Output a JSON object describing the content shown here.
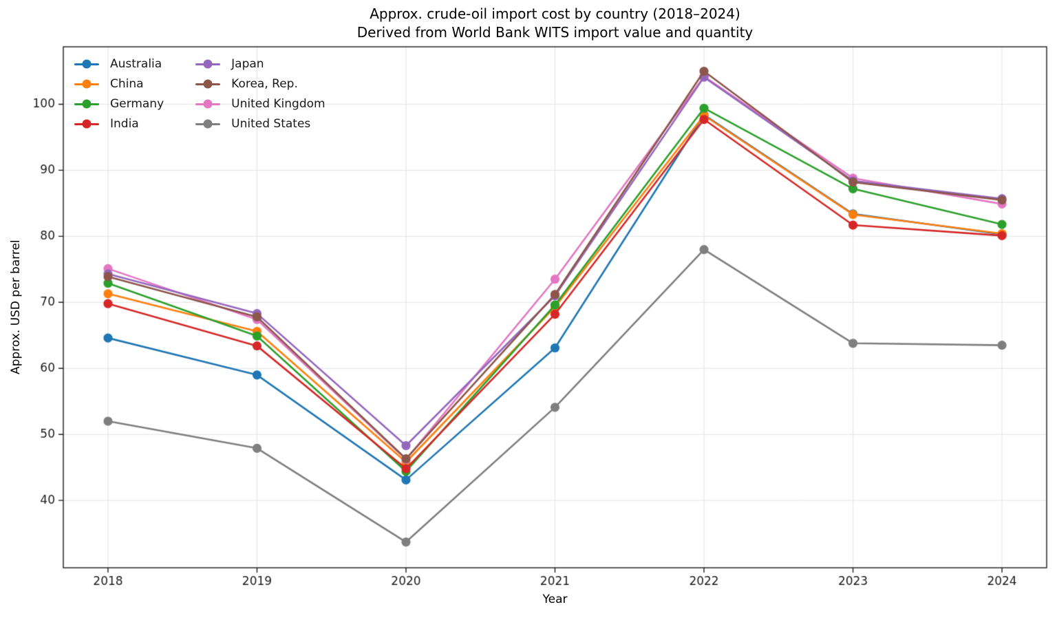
{
  "title": {
    "line1": "Approx. crude-oil import cost by country (2018–2024)",
    "line2": "Derived from World Bank WITS import value and quantity"
  },
  "chart_data": {
    "type": "line",
    "title": "Approx. crude-oil import cost by country (2018–2024)",
    "subtitle": "Derived from World Bank WITS import value and quantity",
    "xlabel": "Year",
    "ylabel": "Approx. USD per barrel",
    "x": [
      2018,
      2019,
      2020,
      2021,
      2022,
      2023,
      2024
    ],
    "xticklabels": [
      "2018",
      "2019",
      "2020",
      "2021",
      "2022",
      "2023",
      "2024"
    ],
    "yticks": [
      40,
      50,
      60,
      70,
      80,
      90,
      100
    ],
    "xlim": [
      2017.7,
      2024.3
    ],
    "ylim": [
      29.8,
      108.7
    ],
    "grid": true,
    "legend_position": "upper-left",
    "legend_columns": 2,
    "legend_columns_order": [
      [
        "Australia",
        "China",
        "Germany",
        "India"
      ],
      [
        "Japan",
        "Korea, Rep.",
        "United Kingdom",
        "United States"
      ]
    ],
    "series": [
      {
        "name": "Australia",
        "color": "#1f77b4",
        "values": [
          64.6,
          59.0,
          43.1,
          63.1,
          98.4,
          83.4,
          80.3
        ]
      },
      {
        "name": "China",
        "color": "#ff7f0e",
        "values": [
          71.3,
          65.6,
          45.8,
          69.3,
          98.3,
          83.3,
          80.4
        ]
      },
      {
        "name": "Germany",
        "color": "#2ca02c",
        "values": [
          72.9,
          64.9,
          44.4,
          69.6,
          99.4,
          87.2,
          81.8
        ]
      },
      {
        "name": "India",
        "color": "#d62728",
        "values": [
          69.8,
          63.4,
          44.8,
          68.2,
          97.7,
          81.7,
          80.1
        ]
      },
      {
        "name": "United Kingdom",
        "color": "#e377c2",
        "values": [
          75.1,
          67.4,
          46.2,
          73.5,
          104.2,
          88.8,
          84.9
        ]
      },
      {
        "name": "Japan",
        "color": "#9467bd",
        "values": [
          74.3,
          68.3,
          48.3,
          71.0,
          104.1,
          88.4,
          85.7
        ]
      },
      {
        "name": "Korea, Rep.",
        "color": "#8c564b",
        "values": [
          73.9,
          67.8,
          46.3,
          71.2,
          105.0,
          88.2,
          85.5
        ]
      },
      {
        "name": "United States",
        "color": "#7f7f7f",
        "values": [
          52.0,
          47.9,
          33.7,
          54.1,
          78.0,
          63.8,
          63.5
        ]
      }
    ],
    "style": {
      "grid_color": "#e3e3e3",
      "frame_color": "#1a1a1a",
      "tick_label_color": "#1a1a1a",
      "background": "#ffffff"
    }
  }
}
